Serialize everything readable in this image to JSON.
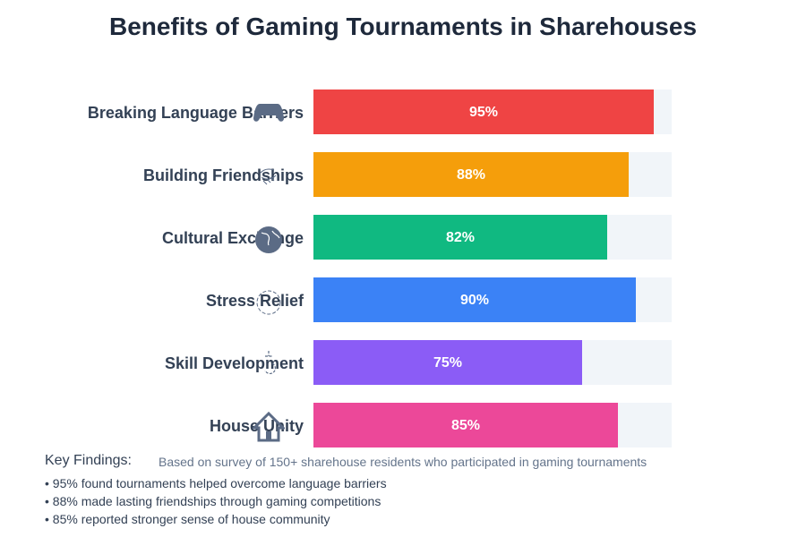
{
  "title": "Benefits of Gaming Tournaments in Sharehouses",
  "chart_data": {
    "type": "bar",
    "orientation": "horizontal",
    "title": "Benefits of Gaming Tournaments in Sharehouses",
    "categories": [
      "Breaking Language Barriers",
      "Building Friendships",
      "Cultural Exchange",
      "Stress Relief",
      "Skill Development",
      "House Unity"
    ],
    "values": [
      95,
      88,
      82,
      90,
      75,
      85
    ],
    "value_labels": [
      "95%",
      "88%",
      "82%",
      "90%",
      "75%",
      "85%"
    ],
    "colors": [
      "#ef4444",
      "#f59e0b",
      "#10b981",
      "#3b82f6",
      "#8b5cf6",
      "#ec4899"
    ],
    "icons": [
      "gamepad-icon",
      "handshake-icon",
      "globe-icon",
      "relief-icon",
      "skill-icon",
      "house-icon"
    ],
    "xlim": [
      0,
      100
    ],
    "xlabel": "",
    "ylabel": "",
    "grid": false,
    "legend": "none"
  },
  "findings": {
    "title": "Key Findings:",
    "note": "Based on survey of 150+ sharehouse residents who participated in gaming tournaments",
    "items": [
      "• 95% found tournaments helped overcome language barriers",
      "• 88% made lasting friendships through gaming competitions",
      "• 85% reported stronger sense of house community"
    ]
  }
}
